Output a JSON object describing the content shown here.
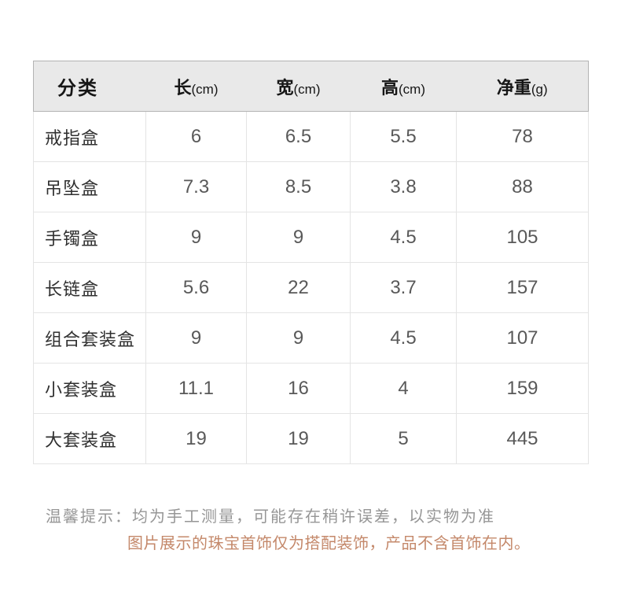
{
  "table": {
    "header": {
      "category_label": "分类",
      "columns": [
        {
          "label": "长",
          "unit": "(cm)"
        },
        {
          "label": "宽",
          "unit": "(cm)"
        },
        {
          "label": "高",
          "unit": "(cm)"
        },
        {
          "label": "净重",
          "unit": "(g)"
        }
      ]
    },
    "rows": [
      {
        "category": "戒指盒",
        "values": [
          "6",
          "6.5",
          "5.5",
          "78"
        ]
      },
      {
        "category": "吊坠盒",
        "values": [
          "7.3",
          "8.5",
          "3.8",
          "88"
        ]
      },
      {
        "category": "手镯盒",
        "values": [
          "9",
          "9",
          "4.5",
          "105"
        ]
      },
      {
        "category": "长链盒",
        "values": [
          "5.6",
          "22",
          "3.7",
          "157"
        ]
      },
      {
        "category": "组合套装盒",
        "values": [
          "9",
          "9",
          "4.5",
          "107"
        ]
      },
      {
        "category": "小套装盒",
        "values": [
          "11.1",
          "16",
          "4",
          "159"
        ]
      },
      {
        "category": "大套装盒",
        "values": [
          "19",
          "19",
          "5",
          "445"
        ]
      }
    ]
  },
  "notes": {
    "line1": "温馨提示：均为手工测量，可能存在稍许误差，以实物为准",
    "line2": "图片展示的珠宝首饰仅为搭配装饰，产品不含首饰在内。"
  },
  "colors": {
    "header_bg": "#e9e9e9",
    "header_border": "#b3b3b3",
    "grid_line": "#e4e4e4",
    "category_text": "#303030",
    "value_text": "#595959",
    "note_gray": "#969696",
    "note_accent": "#c4886a"
  }
}
